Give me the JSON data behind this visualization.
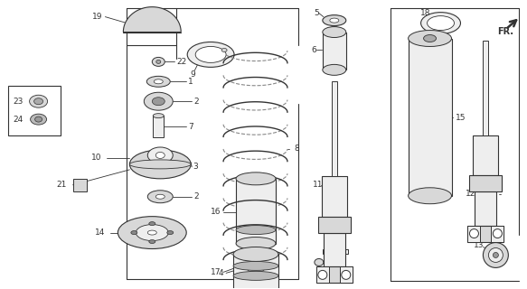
{
  "bg_color": "#ffffff",
  "line_color": "#333333",
  "gray_fill": "#d8d8d8",
  "light_fill": "#eeeeee",
  "white_fill": "#ffffff",
  "figsize": [
    5.83,
    3.2
  ],
  "dpi": 100
}
